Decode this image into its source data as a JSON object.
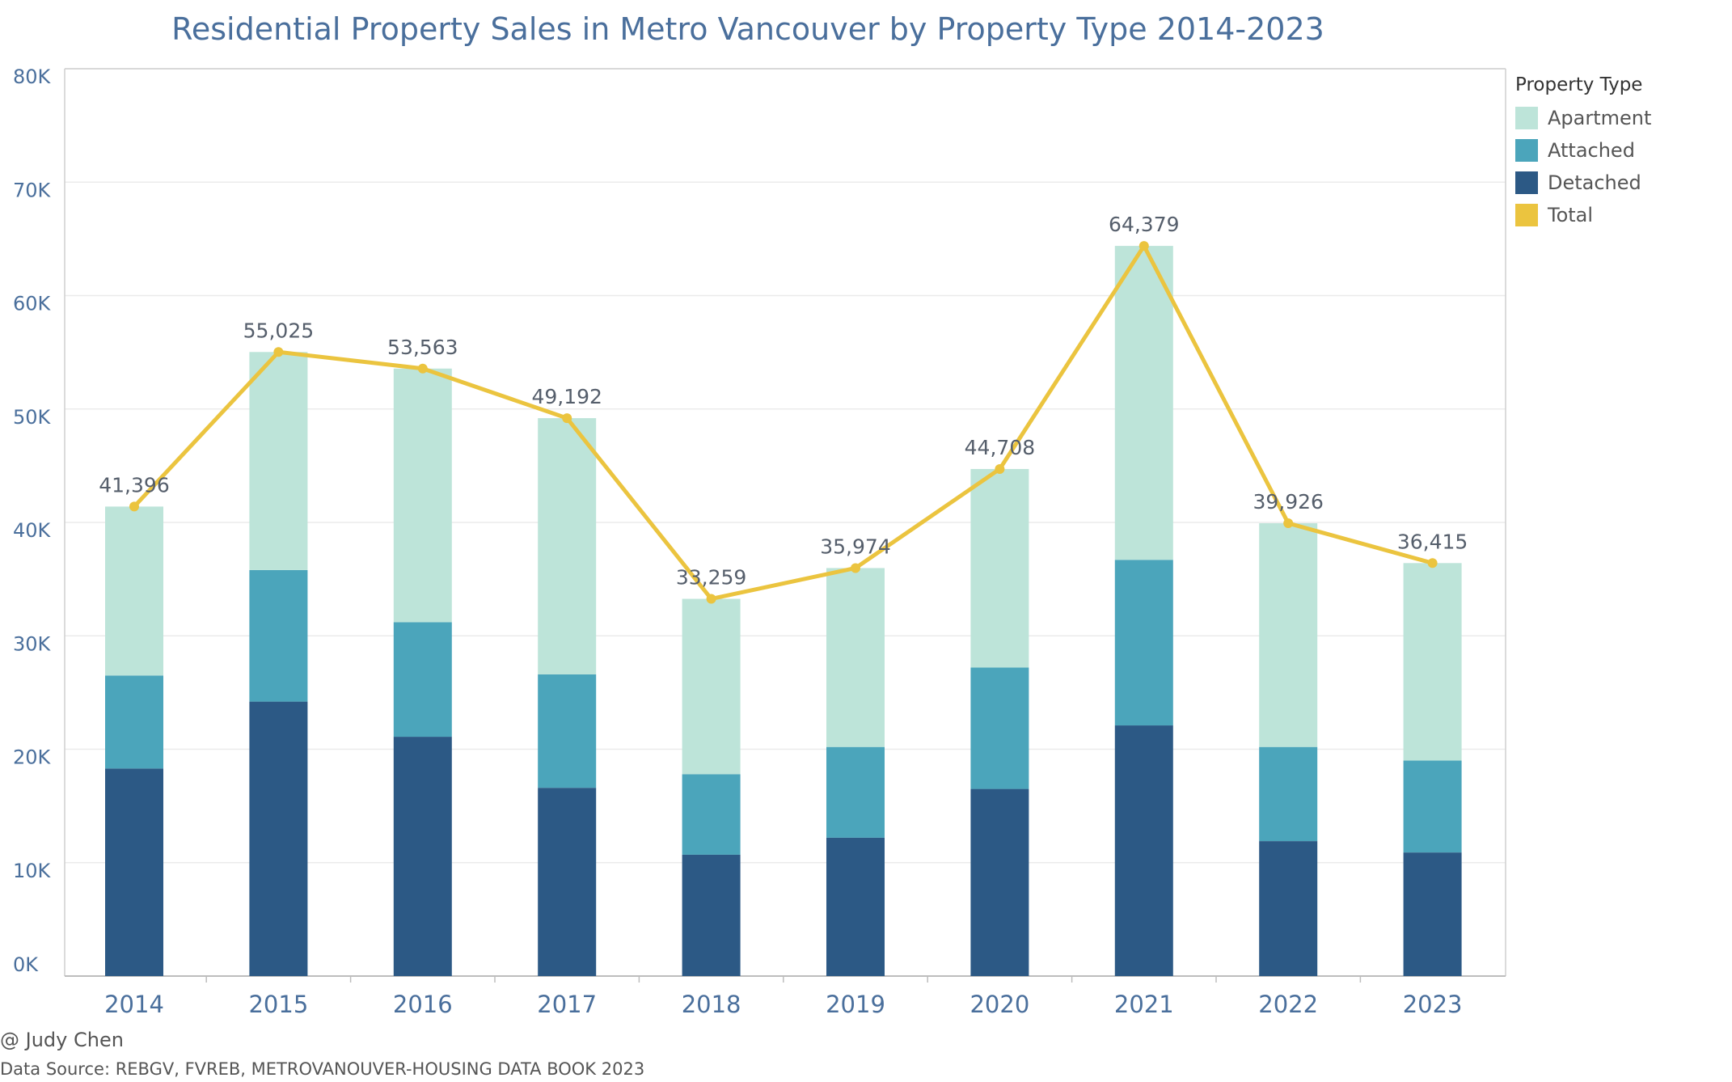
{
  "chart_data": {
    "type": "bar",
    "stacked": true,
    "title": "Residential Property Sales in Metro Vancouver by Property Type 2014-2023",
    "xlabel": "",
    "ylabel": "",
    "categories": [
      "2014",
      "2015",
      "2016",
      "2017",
      "2018",
      "2019",
      "2020",
      "2021",
      "2022",
      "2023"
    ],
    "ylim": [
      0,
      80000
    ],
    "y_ticks": [
      0,
      10000,
      20000,
      30000,
      40000,
      50000,
      60000,
      70000,
      80000
    ],
    "y_tick_labels": [
      "0K",
      "10K",
      "20K",
      "30K",
      "40K",
      "50K",
      "60K",
      "70K",
      "80K"
    ],
    "grid": true,
    "legend_title": "Property Type",
    "legend_position": "right",
    "series": [
      {
        "name": "Detached",
        "color": "#2c5985",
        "values": [
          18300,
          24200,
          21100,
          16600,
          10700,
          12200,
          16500,
          22100,
          11900,
          10900
        ]
      },
      {
        "name": "Attached",
        "color": "#4ba5bb",
        "values": [
          8200,
          11600,
          10100,
          10000,
          7100,
          8000,
          10700,
          14600,
          8300,
          8100
        ]
      },
      {
        "name": "Apartment",
        "color": "#bde4d9",
        "values": [
          14896,
          19225,
          22363,
          22592,
          15459,
          15774,
          17508,
          27679,
          19726,
          17415
        ]
      }
    ],
    "line_series": {
      "name": "Total",
      "color": "#ebc43f",
      "values": [
        41396,
        55025,
        53563,
        49192,
        33259,
        35974,
        44708,
        64379,
        39926,
        36415
      ],
      "labels": [
        "41,396",
        "55,025",
        "53,563",
        "49,192",
        "33,259",
        "35,974",
        "44,708",
        "64,379",
        "39,926",
        "36,415"
      ]
    },
    "legend": [
      {
        "name": "Apartment",
        "color": "#bde4d9"
      },
      {
        "name": "Attached",
        "color": "#4ba5bb"
      },
      {
        "name": "Detached",
        "color": "#2c5985"
      },
      {
        "name": "Total",
        "color": "#ebc43f"
      }
    ]
  },
  "credits": {
    "author": "@ Judy Chen",
    "source": "Data Source: REBGV, FVREB, METROVANOUVER-HOUSING DATA BOOK 2023"
  }
}
